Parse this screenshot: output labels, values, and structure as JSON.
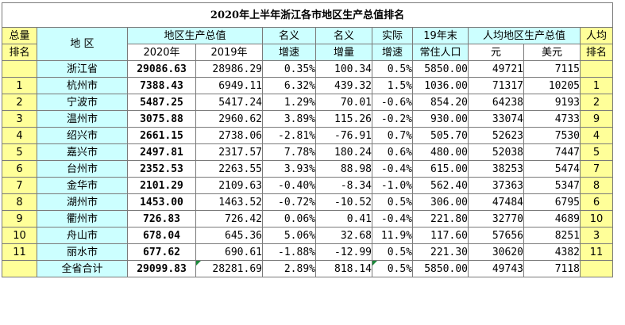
{
  "title": "2020年上半年浙江各市地区生产总值排名",
  "headers": {
    "rank_top": "总量",
    "rank_bottom": "排名",
    "region": "地 区",
    "gdp": "地区生产总值",
    "gdp_2020": "2020年",
    "gdp_2019": "2019年",
    "nominal_growth_top": "名义",
    "nominal_growth_bottom": "增速",
    "nominal_increase_top": "名义",
    "nominal_increase_bottom": "增量",
    "real_growth_top": "实际",
    "real_growth_bottom": "增速",
    "population_top": "19年末",
    "population_bottom": "常住人口",
    "per_capita": "人均地区生产总值",
    "per_capita_yuan": "元",
    "per_capita_usd": "美元",
    "pc_rank_top": "人均",
    "pc_rank_bottom": "排名"
  },
  "rows": [
    {
      "rank": "",
      "region": "浙江省",
      "gdp2020": "29086.63",
      "gdp2019": "28986.29",
      "growth": "0.35%",
      "increase": "100.34",
      "real": "0.5%",
      "pop": "5850.00",
      "yuan": "49721",
      "usd": "7115",
      "pcrank": ""
    },
    {
      "rank": "1",
      "region": "杭州市",
      "gdp2020": "7388.43",
      "gdp2019": "6949.11",
      "growth": "6.32%",
      "increase": "439.32",
      "real": "1.5%",
      "pop": "1036.00",
      "yuan": "71317",
      "usd": "10205",
      "pcrank": "1"
    },
    {
      "rank": "2",
      "region": "宁波市",
      "gdp2020": "5487.25",
      "gdp2019": "5417.24",
      "growth": "1.29%",
      "increase": "70.01",
      "real": "-0.6%",
      "pop": "854.20",
      "yuan": "64238",
      "usd": "9193",
      "pcrank": "2"
    },
    {
      "rank": "3",
      "region": "温州市",
      "gdp2020": "3075.88",
      "gdp2019": "2960.62",
      "growth": "3.89%",
      "increase": "115.26",
      "real": "-0.2%",
      "pop": "930.00",
      "yuan": "33074",
      "usd": "4733",
      "pcrank": "9"
    },
    {
      "rank": "4",
      "region": "绍兴市",
      "gdp2020": "2661.15",
      "gdp2019": "2738.06",
      "growth": "-2.81%",
      "increase": "-76.91",
      "real": "0.7%",
      "pop": "505.70",
      "yuan": "52623",
      "usd": "7530",
      "pcrank": "4"
    },
    {
      "rank": "5",
      "region": "嘉兴市",
      "gdp2020": "2497.81",
      "gdp2019": "2317.57",
      "growth": "7.78%",
      "increase": "180.24",
      "real": "0.6%",
      "pop": "480.00",
      "yuan": "52038",
      "usd": "7447",
      "pcrank": "5"
    },
    {
      "rank": "6",
      "region": "台州市",
      "gdp2020": "2352.53",
      "gdp2019": "2263.55",
      "growth": "3.93%",
      "increase": "88.98",
      "real": "-0.4%",
      "pop": "615.00",
      "yuan": "38253",
      "usd": "5474",
      "pcrank": "7"
    },
    {
      "rank": "7",
      "region": "金华市",
      "gdp2020": "2101.29",
      "gdp2019": "2109.63",
      "growth": "-0.40%",
      "increase": "-8.34",
      "real": "-1.0%",
      "pop": "562.40",
      "yuan": "37363",
      "usd": "5347",
      "pcrank": "8"
    },
    {
      "rank": "8",
      "region": "湖州市",
      "gdp2020": "1453.00",
      "gdp2019": "1463.52",
      "growth": "-0.72%",
      "increase": "-10.52",
      "real": "0.5%",
      "pop": "306.00",
      "yuan": "47484",
      "usd": "6795",
      "pcrank": "6"
    },
    {
      "rank": "9",
      "region": "衢州市",
      "gdp2020": "726.83",
      "gdp2019": "726.42",
      "growth": "0.06%",
      "increase": "0.41",
      "real": "-0.4%",
      "pop": "221.80",
      "yuan": "32770",
      "usd": "4689",
      "pcrank": "10"
    },
    {
      "rank": "10",
      "region": "舟山市",
      "gdp2020": "678.04",
      "gdp2019": "645.36",
      "growth": "5.06%",
      "increase": "32.68",
      "real": "11.9%",
      "pop": "117.60",
      "yuan": "57656",
      "usd": "8251",
      "pcrank": "3"
    },
    {
      "rank": "11",
      "region": "丽水市",
      "gdp2020": "677.62",
      "gdp2019": "690.61",
      "growth": "-1.88%",
      "increase": "-12.99",
      "real": "0.5%",
      "pop": "221.30",
      "yuan": "30620",
      "usd": "4382",
      "pcrank": "11"
    },
    {
      "rank": "",
      "region": "全省合计",
      "gdp2020": "29099.83",
      "gdp2019": "28281.69",
      "growth": "2.89%",
      "increase": "818.14",
      "real": "0.5%",
      "pop": "5850.00",
      "yuan": "49743",
      "usd": "7118",
      "pcrank": ""
    }
  ],
  "colors": {
    "header_cyan": "#ccffff",
    "rank_yellow": "#ffff99",
    "grid_line": "#7a7a7a",
    "comment_marker": "#1a8a3a"
  }
}
